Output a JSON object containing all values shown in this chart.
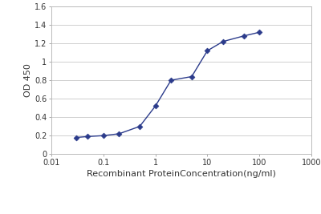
{
  "x_values": [
    0.03,
    0.05,
    0.1,
    0.2,
    0.5,
    1.0,
    2.0,
    5.0,
    10.0,
    20.0,
    50.0,
    100.0
  ],
  "y_values": [
    0.18,
    0.19,
    0.2,
    0.22,
    0.3,
    0.52,
    0.8,
    0.84,
    1.12,
    1.22,
    1.28,
    1.32
  ],
  "xlabel": "Recombinant ProteinConcentration(ng/ml)",
  "ylabel": "OD 450",
  "xlim": [
    0.01,
    1000
  ],
  "ylim": [
    0,
    1.6
  ],
  "ytick_vals": [
    0,
    0.2,
    0.4,
    0.6,
    0.8,
    1.0,
    1.2,
    1.4,
    1.6
  ],
  "ytick_labels": [
    "0",
    "0.2",
    "0.4",
    "0.6",
    "0.8",
    "1",
    "1.2",
    "1.4",
    "1.6"
  ],
  "xtick_vals": [
    0.01,
    0.1,
    1,
    10,
    100,
    1000
  ],
  "xtick_labels": [
    "0.01",
    "0.1",
    "1",
    "10",
    "100",
    "1000"
  ],
  "line_color": "#2b3b8b",
  "marker": "D",
  "marker_size": 3.5,
  "line_width": 1.0,
  "bg_color": "#ffffff",
  "grid_color": "#c8c8c8",
  "tick_fontsize": 7,
  "xlabel_fontsize": 8,
  "ylabel_fontsize": 8
}
